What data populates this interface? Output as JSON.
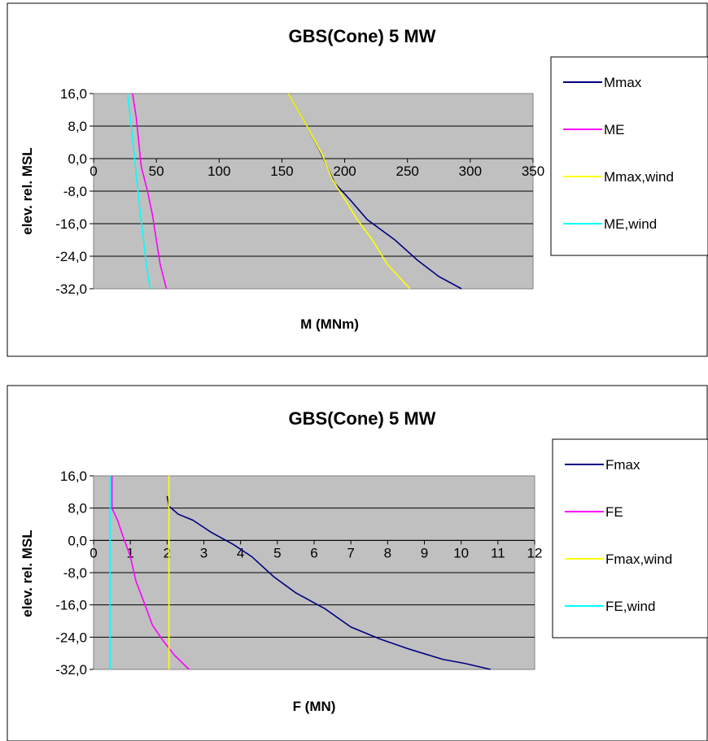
{
  "chart_data": [
    {
      "type": "line",
      "title": "GBS(Cone) 5 MW",
      "xlabel": "M (MNm)",
      "ylabel": "elev. rel. MSL",
      "xlim": [
        0,
        350
      ],
      "ylim": [
        -32,
        16
      ],
      "xticks": [
        "0",
        "50",
        "100",
        "150",
        "200",
        "250",
        "300",
        "350"
      ],
      "yticks": [
        "16,0",
        "8,0",
        "0,0",
        "-8,0",
        "-16,0",
        "-24,0",
        "-32,0"
      ],
      "grid": "horizontal",
      "legend": "right",
      "series": [
        {
          "name": "Mmax",
          "color": "#000080",
          "points": [
            [
              155,
              16
            ],
            [
              170,
              8
            ],
            [
              180,
              2
            ],
            [
              186,
              -2
            ],
            [
              192,
              -6
            ],
            [
              204,
              -10
            ],
            [
              218,
              -15
            ],
            [
              240,
              -20
            ],
            [
              258,
              -25
            ],
            [
              275,
              -29
            ],
            [
              293,
              -32
            ]
          ]
        },
        {
          "name": "ME",
          "color": "#ff00ff",
          "points": [
            [
              31,
              16
            ],
            [
              34,
              10
            ],
            [
              36,
              4
            ],
            [
              38,
              -2
            ],
            [
              43,
              -8
            ],
            [
              47,
              -14
            ],
            [
              50,
              -20
            ],
            [
              53,
              -26
            ],
            [
              58,
              -32
            ]
          ]
        },
        {
          "name": "Mmax,wind",
          "color": "#ffff00",
          "points": [
            [
              155,
              16
            ],
            [
              170,
              8
            ],
            [
              182,
              1
            ],
            [
              190,
              -5
            ],
            [
              200,
              -10
            ],
            [
              210,
              -15
            ],
            [
              222,
              -20
            ],
            [
              234,
              -26
            ],
            [
              252,
              -32
            ]
          ]
        },
        {
          "name": "ME,wind",
          "color": "#00ffff",
          "points": [
            [
              27,
              16
            ],
            [
              30,
              8
            ],
            [
              32,
              2
            ],
            [
              34,
              -4
            ],
            [
              36,
              -10
            ],
            [
              39,
              -18
            ],
            [
              42,
              -26
            ],
            [
              45,
              -32
            ]
          ]
        }
      ]
    },
    {
      "type": "line",
      "title": "GBS(Cone) 5 MW",
      "xlabel": "F (MN)",
      "ylabel": "elev. rel. MSL",
      "xlim": [
        0,
        12
      ],
      "ylim": [
        -32,
        16
      ],
      "xticks": [
        "0",
        "1",
        "2",
        "3",
        "4",
        "5",
        "6",
        "7",
        "8",
        "9",
        "10",
        "11",
        "12"
      ],
      "yticks": [
        "16,0",
        "8,0",
        "0,0",
        "-8,0",
        "-16,0",
        "-24,0",
        "-32,0"
      ],
      "grid": "horizontal",
      "legend": "right",
      "series": [
        {
          "name": "Fmax",
          "color": "#000080",
          "points": [
            [
              2.0,
              11
            ],
            [
              2.05,
              8.5
            ],
            [
              2.3,
              6.5
            ],
            [
              2.7,
              5
            ],
            [
              3.2,
              2
            ],
            [
              3.8,
              -1
            ],
            [
              4.3,
              -4
            ],
            [
              4.9,
              -9
            ],
            [
              5.5,
              -13
            ],
            [
              6.3,
              -17
            ],
            [
              7.0,
              -21.5
            ],
            [
              7.8,
              -24.5
            ],
            [
              8.6,
              -27
            ],
            [
              9.5,
              -29.5
            ],
            [
              10.1,
              -30.5
            ],
            [
              10.8,
              -32
            ]
          ]
        },
        {
          "name": "FE",
          "color": "#ff00ff",
          "points": [
            [
              0.5,
              16
            ],
            [
              0.5,
              8
            ],
            [
              0.65,
              5
            ],
            [
              0.8,
              1
            ],
            [
              1.0,
              -4
            ],
            [
              1.15,
              -10
            ],
            [
              1.4,
              -16
            ],
            [
              1.6,
              -21
            ],
            [
              1.9,
              -25
            ],
            [
              2.2,
              -28.5
            ],
            [
              2.6,
              -32
            ]
          ]
        },
        {
          "name": "Fmax,wind",
          "color": "#ffff00",
          "points": [
            [
              2.05,
              16
            ],
            [
              2.05,
              -32
            ]
          ]
        },
        {
          "name": "FE,wind",
          "color": "#00ffff",
          "points": [
            [
              0.45,
              16
            ],
            [
              0.45,
              -32
            ]
          ]
        }
      ]
    }
  ]
}
